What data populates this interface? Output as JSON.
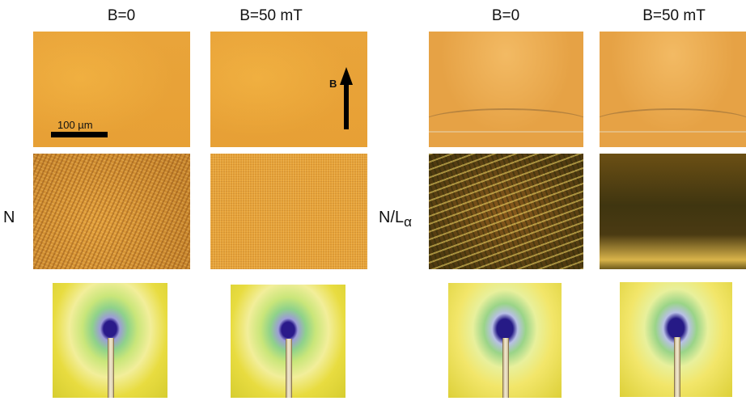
{
  "columns": {
    "c1": "B=0",
    "c2": "B=50 mT",
    "c3": "B=0",
    "c4": "B=50 mT"
  },
  "rows": {
    "left": "N",
    "right": "N/L",
    "right_sub": "α"
  },
  "annotations": {
    "scalebar_label": "100 µm",
    "field_arrow_label": "B"
  },
  "colors": {
    "micrograph_orange": "#e7a035",
    "diffraction_center": "#261a86",
    "diffraction_outer": "#ddd038"
  }
}
